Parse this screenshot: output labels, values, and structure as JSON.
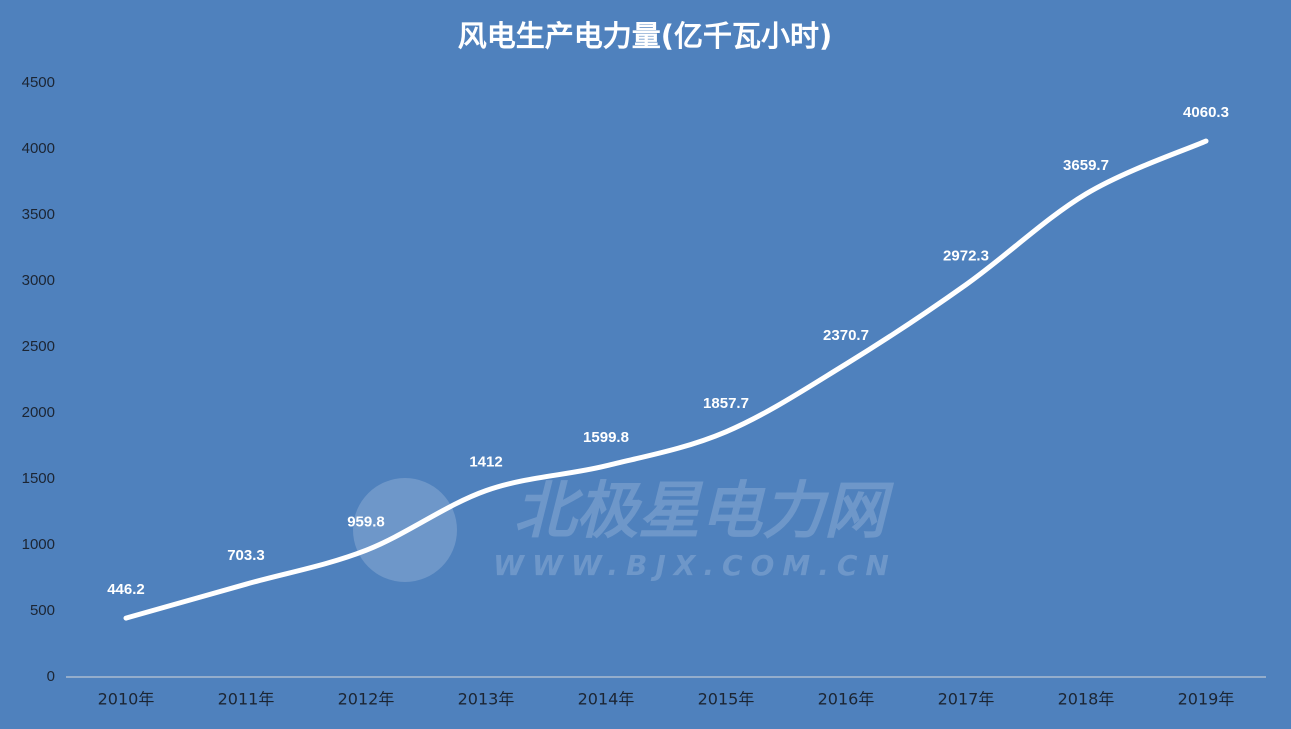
{
  "chart_data": {
    "type": "line",
    "title": "风电生产电力量(亿千瓦小时)",
    "categories": [
      "2010年",
      "2011年",
      "2012年",
      "2013年",
      "2014年",
      "2015年",
      "2016年",
      "2017年",
      "2018年",
      "2019年"
    ],
    "values": [
      446.2,
      703.3,
      959.8,
      1412,
      1599.8,
      1857.7,
      2370.7,
      2972.3,
      3659.7,
      4060.3
    ],
    "color": "#ffffff",
    "ylim": [
      0,
      4500
    ],
    "yticks": [
      0,
      500,
      1000,
      1500,
      2000,
      2500,
      3000,
      3500,
      4000,
      4500
    ],
    "smooth": true,
    "drop_lines": true,
    "watermark": [
      "北极星电力网",
      "WWW.BJX.COM.CN"
    ]
  }
}
